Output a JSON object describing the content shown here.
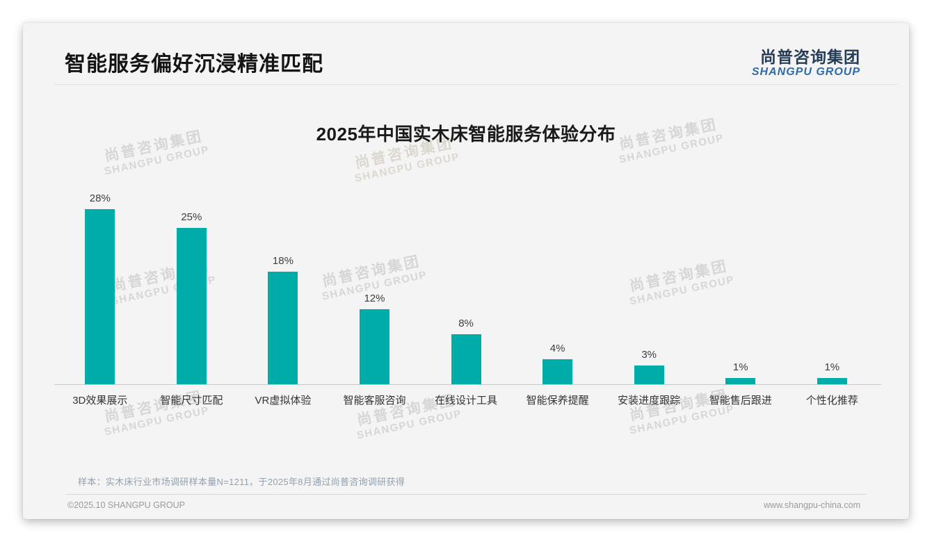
{
  "slide": {
    "title": "智能服务偏好沉浸精准匹配",
    "logo": {
      "cn": "尚普咨询集团",
      "en": "SHANGPU GROUP"
    },
    "watermark": {
      "cn": "尚普咨询集团",
      "en": "SHANGPU GROUP"
    },
    "note": "样本：实木床行业市场调研样本量N=1211，于2025年8月通过尚普咨询调研获得",
    "footer": {
      "left": "©2025.10 SHANGPU GROUP",
      "right": "www.shangpu-china.com"
    }
  },
  "colors": {
    "bar": "#00ACA7",
    "logo_cn": "#243c55",
    "logo_en": "#2f6ba8",
    "title": "#141414",
    "note": "#93a0ad",
    "footer": "#9b9b9b",
    "card_bg": "#f4f4f4",
    "axis": "#c9c9c9"
  },
  "chart_data": {
    "type": "bar",
    "title": "2025年中国实木床智能服务体验分布",
    "categories": [
      "3D效果展示",
      "智能尺寸匹配",
      "VR虚拟体验",
      "智能客服咨询",
      "在线设计工具",
      "智能保养提醒",
      "安装进度跟踪",
      "智能售后跟进",
      "个性化推荐"
    ],
    "values": [
      28,
      25,
      18,
      12,
      8,
      4,
      3,
      1,
      1
    ],
    "value_labels": [
      "28%",
      "25%",
      "18%",
      "12%",
      "8%",
      "4%",
      "3%",
      "1%",
      "1%"
    ],
    "unit": "%",
    "xlabel": "",
    "ylabel": "",
    "ylim": [
      0,
      30
    ],
    "grid": false,
    "legend": null,
    "bar_color": "#00ACA7"
  }
}
